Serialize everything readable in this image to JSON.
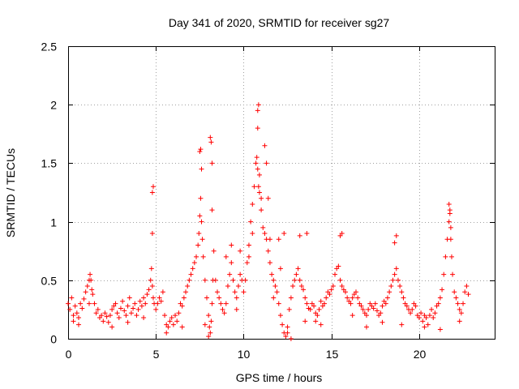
{
  "chart_data": {
    "type": "scatter",
    "title": "Day 341 of 2020, SRMTID for receiver sg27",
    "xlabel": "GPS time / hours",
    "ylabel": "SRMTID / TECUs",
    "xlim": [
      0,
      24.3
    ],
    "ylim": [
      0,
      2.5
    ],
    "xticks": [
      0,
      5,
      10,
      15,
      20
    ],
    "yticks": [
      0,
      0.5,
      1,
      1.5,
      2,
      2.5
    ],
    "xtick_labels": [
      "0",
      "5",
      "10",
      "15",
      "20"
    ],
    "ytick_labels": [
      "0",
      "0.5",
      "1",
      "1.5",
      "2",
      "2.5"
    ],
    "grid": true,
    "marker": "+",
    "color": "#ff0000",
    "series": [
      {
        "name": "SRMTID",
        "x": [
          0.0,
          0.1,
          0.2,
          0.3,
          0.4,
          0.5,
          0.6,
          0.7,
          0.8,
          0.9,
          1.0,
          1.1,
          1.2,
          1.25,
          1.3,
          1.35,
          1.4,
          1.5,
          1.6,
          1.7,
          1.8,
          1.9,
          2.0,
          2.1,
          2.2,
          2.3,
          2.4,
          2.5,
          2.6,
          2.7,
          2.8,
          2.9,
          3.0,
          3.1,
          3.2,
          3.3,
          3.4,
          3.5,
          3.6,
          3.7,
          3.8,
          3.9,
          4.0,
          4.1,
          4.2,
          4.3,
          4.4,
          4.5,
          4.6,
          4.7,
          4.75,
          4.8,
          4.85,
          4.9,
          5.0,
          5.1,
          5.2,
          5.3,
          5.4,
          5.5,
          5.6,
          5.7,
          5.8,
          5.9,
          6.0,
          6.1,
          6.2,
          6.3,
          6.4,
          6.5,
          6.6,
          6.7,
          6.8,
          6.9,
          7.0,
          7.1,
          7.2,
          7.3,
          7.4,
          7.45,
          7.5,
          7.55,
          7.6,
          7.65,
          7.7,
          7.8,
          7.9,
          8.0,
          8.05,
          8.1,
          8.15,
          8.2,
          8.25,
          8.3,
          8.4,
          8.5,
          8.6,
          8.7,
          8.8,
          8.9,
          9.0,
          9.1,
          9.2,
          9.3,
          9.4,
          9.5,
          9.6,
          9.7,
          9.8,
          9.9,
          10.0,
          10.1,
          10.2,
          10.3,
          10.4,
          10.5,
          10.6,
          10.7,
          10.75,
          10.8,
          10.85,
          10.9,
          11.0,
          11.1,
          11.2,
          11.3,
          11.4,
          11.5,
          11.6,
          11.7,
          11.8,
          11.9,
          12.0,
          12.1,
          12.2,
          12.3,
          12.4,
          12.5,
          12.6,
          12.7,
          12.8,
          12.9,
          13.0,
          13.1,
          13.2,
          13.3,
          13.4,
          13.5,
          13.6,
          13.7,
          13.8,
          13.9,
          14.0,
          14.1,
          14.2,
          14.3,
          14.4,
          14.5,
          14.6,
          14.7,
          14.8,
          14.9,
          15.0,
          15.1,
          15.2,
          15.3,
          15.4,
          15.5,
          15.6,
          15.7,
          15.8,
          15.9,
          16.0,
          16.1,
          16.2,
          16.3,
          16.4,
          16.5,
          16.6,
          16.7,
          16.8,
          16.9,
          17.0,
          17.1,
          17.2,
          17.3,
          17.4,
          17.5,
          17.6,
          17.7,
          17.8,
          17.9,
          18.0,
          18.1,
          18.2,
          18.3,
          18.4,
          18.5,
          18.6,
          18.7,
          18.8,
          18.9,
          19.0,
          19.1,
          19.2,
          19.3,
          19.4,
          19.5,
          19.6,
          19.7,
          19.8,
          19.9,
          20.0,
          20.1,
          20.2,
          20.3,
          20.4,
          20.5,
          20.6,
          20.7,
          20.8,
          20.9,
          21.0,
          21.1,
          21.2,
          21.3,
          21.4,
          21.5,
          21.6,
          21.7,
          21.75,
          21.8,
          21.85,
          21.9,
          22.0,
          22.1,
          22.2,
          22.3,
          22.4,
          22.5,
          22.6,
          22.7,
          22.8,
          4.8,
          4.85,
          4.8,
          7.5,
          7.55,
          7.6,
          8.1,
          8.15,
          8.2,
          8.2,
          10.8,
          10.85,
          10.8,
          10.9,
          11.0,
          11.2,
          11.3,
          11.4,
          12.0,
          12.3,
          13.2,
          13.6,
          15.5,
          15.6,
          18.6,
          18.7,
          21.7,
          21.75,
          21.8,
          0.3,
          0.6,
          1.2,
          2.5,
          3.4,
          4.3,
          5.6,
          6.5,
          7.8,
          8.0,
          9.6,
          10.3,
          11.7,
          12.5,
          12.7,
          13.5,
          14.4,
          16.2,
          17.0,
          17.9,
          19.0,
          20.3,
          21.2,
          22.3,
          9.0,
          9.3,
          9.8,
          10.5,
          11.5,
          12.1,
          14.1
        ],
        "y": [
          0.3,
          0.25,
          0.35,
          0.2,
          0.28,
          0.22,
          0.18,
          0.3,
          0.26,
          0.34,
          0.4,
          0.45,
          0.5,
          0.55,
          0.5,
          0.42,
          0.38,
          0.3,
          0.22,
          0.25,
          0.18,
          0.2,
          0.15,
          0.22,
          0.19,
          0.14,
          0.2,
          0.25,
          0.28,
          0.3,
          0.22,
          0.18,
          0.26,
          0.32,
          0.24,
          0.2,
          0.28,
          0.35,
          0.22,
          0.26,
          0.3,
          0.2,
          0.25,
          0.32,
          0.28,
          0.35,
          0.3,
          0.38,
          0.42,
          0.5,
          0.6,
          0.45,
          0.35,
          0.3,
          0.25,
          0.3,
          0.35,
          0.32,
          0.4,
          0.2,
          0.12,
          0.1,
          0.15,
          0.18,
          0.12,
          0.2,
          0.15,
          0.22,
          0.3,
          0.28,
          0.35,
          0.4,
          0.45,
          0.5,
          0.55,
          0.6,
          0.65,
          0.7,
          0.8,
          0.9,
          1.05,
          1.2,
          1.0,
          0.85,
          0.7,
          0.5,
          0.35,
          0.2,
          0.1,
          0.05,
          0.15,
          0.3,
          0.5,
          0.75,
          0.5,
          0.4,
          0.35,
          0.3,
          0.25,
          0.22,
          0.3,
          0.45,
          0.55,
          0.65,
          0.5,
          0.4,
          0.35,
          0.45,
          0.55,
          0.5,
          0.4,
          0.5,
          0.65,
          0.8,
          1.0,
          1.15,
          1.3,
          1.5,
          1.55,
          1.45,
          1.3,
          1.25,
          1.1,
          0.95,
          0.9,
          0.85,
          0.75,
          0.65,
          0.55,
          0.5,
          0.45,
          0.4,
          0.3,
          0.2,
          0.12,
          0.05,
          0.02,
          0.1,
          0.25,
          0.35,
          0.45,
          0.5,
          0.55,
          0.6,
          0.5,
          0.45,
          0.42,
          0.35,
          0.3,
          0.26,
          0.25,
          0.3,
          0.28,
          0.22,
          0.2,
          0.25,
          0.32,
          0.28,
          0.3,
          0.35,
          0.4,
          0.38,
          0.42,
          0.45,
          0.55,
          0.6,
          0.62,
          0.5,
          0.45,
          0.42,
          0.4,
          0.35,
          0.32,
          0.3,
          0.35,
          0.38,
          0.4,
          0.35,
          0.3,
          0.28,
          0.25,
          0.22,
          0.2,
          0.25,
          0.3,
          0.28,
          0.26,
          0.3,
          0.24,
          0.2,
          0.22,
          0.28,
          0.32,
          0.3,
          0.35,
          0.4,
          0.45,
          0.5,
          0.55,
          0.6,
          0.5,
          0.45,
          0.4,
          0.35,
          0.3,
          0.28,
          0.25,
          0.22,
          0.25,
          0.3,
          0.28,
          0.2,
          0.18,
          0.22,
          0.15,
          0.2,
          0.18,
          0.12,
          0.2,
          0.25,
          0.18,
          0.22,
          0.28,
          0.3,
          0.35,
          0.42,
          0.55,
          0.7,
          0.85,
          1.0,
          1.1,
          0.85,
          0.7,
          0.55,
          0.4,
          0.35,
          0.3,
          0.25,
          0.22,
          0.3,
          0.4,
          0.45,
          0.38,
          1.25,
          1.3,
          0.9,
          1.6,
          1.62,
          1.45,
          1.72,
          1.68,
          1.5,
          1.1,
          1.95,
          2.0,
          1.8,
          1.4,
          1.2,
          1.65,
          1.5,
          1.2,
          0.85,
          0.9,
          0.88,
          0.9,
          0.88,
          0.9,
          0.82,
          0.88,
          1.15,
          1.07,
          0.95,
          0.15,
          0.12,
          0.3,
          0.1,
          0.14,
          0.18,
          0.05,
          0.1,
          0.12,
          0.02,
          0.25,
          0.7,
          0.35,
          0.05,
          0.0,
          0.15,
          0.12,
          0.2,
          0.1,
          0.14,
          0.12,
          0.1,
          0.08,
          0.15,
          0.7,
          0.8,
          0.75,
          0.9,
          0.85,
          0.6,
          0.15
        ]
      }
    ]
  }
}
